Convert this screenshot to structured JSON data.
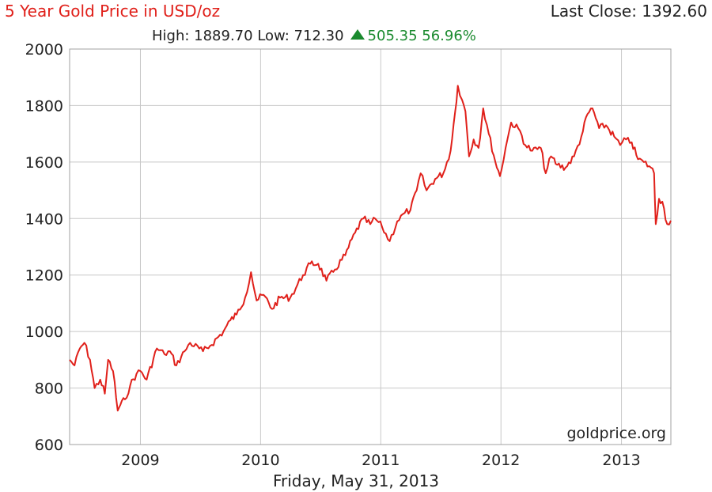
{
  "header": {
    "title": "5 Year Gold Price in USD/oz",
    "last_close_label": "Last Close: 1392.60",
    "high_low": "High: 1889.70 Low: 712.30",
    "change": "505.35 56.96%"
  },
  "watermark": "goldprice.org",
  "footer_date": "Friday, May 31, 2013",
  "colors": {
    "line": "#e0201a",
    "title": "#e0201a",
    "change": "#1a8a2e",
    "grid": "#c8c8c8"
  },
  "icons": {
    "change_direction": "up-triangle-icon"
  },
  "chart_data": {
    "type": "line",
    "title": "5 Year Gold Price in USD/oz",
    "xlabel": "",
    "ylabel": "",
    "ylim": [
      600,
      2000
    ],
    "xlim": [
      "2008-05-31",
      "2013-05-31"
    ],
    "grid": true,
    "legend": "none",
    "y_ticks": [
      600,
      800,
      1000,
      1200,
      1400,
      1600,
      1800,
      2000
    ],
    "x_ticks": [
      "2009",
      "2010",
      "2011",
      "2012",
      "2013"
    ],
    "series": [
      {
        "x": [
          "2008-05-31",
          "2008-06-15",
          "2008-07-01",
          "2008-07-15",
          "2008-08-01",
          "2008-08-15",
          "2008-09-01",
          "2008-09-15",
          "2008-09-25",
          "2008-10-10",
          "2008-10-24",
          "2008-11-01",
          "2008-11-15",
          "2008-12-01",
          "2008-12-20",
          "2009-01-01",
          "2009-01-20",
          "2009-02-20",
          "2009-03-15",
          "2009-04-01",
          "2009-04-20",
          "2009-05-15",
          "2009-06-01",
          "2009-07-10",
          "2009-08-01",
          "2009-09-10",
          "2009-10-01",
          "2009-10-20",
          "2009-11-15",
          "2009-12-03",
          "2009-12-20",
          "2010-01-10",
          "2010-02-05",
          "2010-03-01",
          "2010-04-01",
          "2010-05-10",
          "2010-06-01",
          "2010-06-25",
          "2010-07-20",
          "2010-08-15",
          "2010-09-15",
          "2010-10-15",
          "2010-11-09",
          "2010-11-30",
          "2010-12-15",
          "2011-01-05",
          "2011-01-28",
          "2011-02-20",
          "2011-03-15",
          "2011-04-01",
          "2011-04-20",
          "2011-05-02",
          "2011-05-20",
          "2011-06-15",
          "2011-07-10",
          "2011-08-01",
          "2011-08-15",
          "2011-08-23",
          "2011-09-05",
          "2011-09-15",
          "2011-09-26",
          "2011-10-10",
          "2011-10-25",
          "2011-11-08",
          "2011-11-25",
          "2011-12-15",
          "2011-12-29",
          "2012-01-15",
          "2012-02-01",
          "2012-02-28",
          "2012-03-15",
          "2012-04-05",
          "2012-05-01",
          "2012-05-16",
          "2012-06-01",
          "2012-06-20",
          "2012-07-15",
          "2012-08-10",
          "2012-09-01",
          "2012-09-20",
          "2012-10-05",
          "2012-10-25",
          "2012-11-15",
          "2012-12-10",
          "2012-12-28",
          "2013-01-15",
          "2013-02-01",
          "2013-02-20",
          "2013-03-10",
          "2013-04-01",
          "2013-04-10",
          "2013-04-15",
          "2013-04-25",
          "2013-05-05",
          "2013-05-20",
          "2013-05-31"
        ],
        "y": [
          900,
          880,
          940,
          960,
          900,
          800,
          830,
          780,
          900,
          860,
          720,
          740,
          760,
          810,
          850,
          860,
          830,
          940,
          920,
          930,
          880,
          930,
          960,
          930,
          950,
          1000,
          1040,
          1060,
          1120,
          1210,
          1110,
          1130,
          1080,
          1120,
          1120,
          1200,
          1240,
          1240,
          1180,
          1220,
          1270,
          1350,
          1400,
          1380,
          1400,
          1370,
          1320,
          1390,
          1420,
          1430,
          1500,
          1560,
          1500,
          1540,
          1560,
          1640,
          1780,
          1870,
          1820,
          1780,
          1620,
          1680,
          1650,
          1790,
          1700,
          1600,
          1550,
          1650,
          1740,
          1710,
          1660,
          1640,
          1650,
          1560,
          1620,
          1590,
          1580,
          1620,
          1690,
          1770,
          1790,
          1720,
          1730,
          1690,
          1660,
          1680,
          1670,
          1610,
          1600,
          1580,
          1560,
          1380,
          1470,
          1460,
          1380,
          1392.6
        ]
      }
    ]
  }
}
